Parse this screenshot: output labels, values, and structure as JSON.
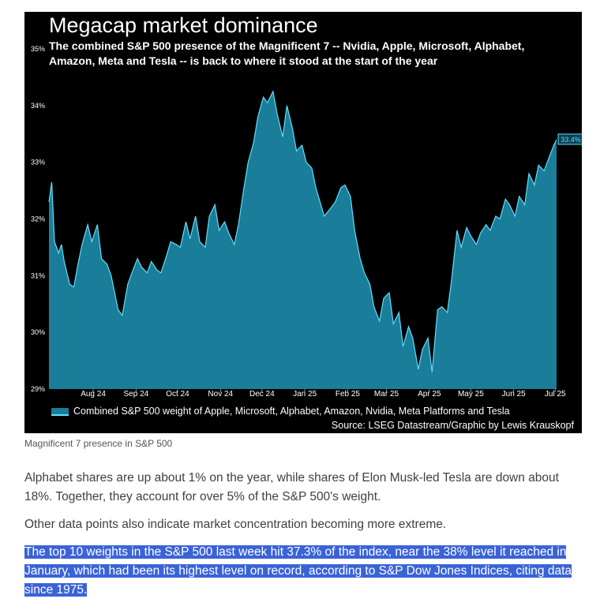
{
  "article": {
    "caption": "Magnificent 7 presence in S&P 500",
    "paragraphs": [
      "Alphabet shares are up about 1% on the year, while shares of Elon Musk-led Tesla are down about 18%. Together, they account for over 5% of the S&P 500's weight.",
      "Other data points also indicate market concentration becoming more extreme.",
      "The top 10 weights in the S&P 500 last week hit 37.3% of the index, near the 38% level it reached in January, which had been its highest level on record, according to S&P Dow Jones Indices, citing data since 1975."
    ],
    "highlight_color": "#3a63d8"
  },
  "chart_data": {
    "type": "area",
    "title": "Megacap market dominance",
    "subtitle": "The combined S&P 500 presence of the Magnificent 7 -- Nvidia, Apple, Microsoft, Alphabet, Amazon, Meta and Tesla -- is back to where it stood at the start of the year",
    "source": "Source: LSEG Datastream/Graphic by Lewis Krauskopf",
    "legend": {
      "position": "bottom-left",
      "entries": [
        "Combined S&P 500 weight of Apple, Microsoft, Alphabet, Amazon, Nvidia, Meta Platforms and Tesla"
      ]
    },
    "xlabel": "",
    "ylabel": "",
    "x_ticks": [
      "Aug 24",
      "Sep 24",
      "Oct 24",
      "Nov 24",
      "Dec 24",
      "Jan 25",
      "Feb 25",
      "Mar 25",
      "Apr 25",
      "May 25",
      "Jun 25",
      "Jul 25"
    ],
    "y_ticks": [
      "29%",
      "30%",
      "31%",
      "32%",
      "33%",
      "34%",
      "35%"
    ],
    "ylim": [
      29,
      35
    ],
    "grid": false,
    "last_value_label": "33.4%",
    "colors": {
      "fill": "#1a7d9a",
      "line": "#5fe0ff",
      "background": "#000000",
      "label_box": "#5fe0ff"
    },
    "series": [
      {
        "name": "Combined S&P 500 weight of Apple, Microsoft, Alphabet, Amazon, Nvidia, Meta Platforms and Tesla",
        "x": [
          "2024-07-15",
          "2024-07-17",
          "2024-07-19",
          "2024-07-22",
          "2024-07-24",
          "2024-07-26",
          "2024-07-30",
          "2024-08-02",
          "2024-08-05",
          "2024-08-08",
          "2024-08-12",
          "2024-08-15",
          "2024-08-19",
          "2024-08-22",
          "2024-08-26",
          "2024-08-29",
          "2024-09-03",
          "2024-09-06",
          "2024-09-10",
          "2024-09-13",
          "2024-09-17",
          "2024-09-20",
          "2024-09-24",
          "2024-09-27",
          "2024-10-01",
          "2024-10-04",
          "2024-10-08",
          "2024-10-11",
          "2024-10-15",
          "2024-10-18",
          "2024-10-22",
          "2024-10-25",
          "2024-10-29",
          "2024-11-01",
          "2024-11-05",
          "2024-11-08",
          "2024-11-12",
          "2024-11-15",
          "2024-11-19",
          "2024-11-22",
          "2024-11-26",
          "2024-11-29",
          "2024-12-03",
          "2024-12-06",
          "2024-12-10",
          "2024-12-13",
          "2024-12-17",
          "2024-12-20",
          "2024-12-24",
          "2024-12-27",
          "2024-12-31",
          "2025-01-03",
          "2025-01-07",
          "2025-01-10",
          "2025-01-14",
          "2025-01-17",
          "2025-01-21",
          "2025-01-24",
          "2025-01-27",
          "2025-01-30",
          "2025-02-04",
          "2025-02-07",
          "2025-02-11",
          "2025-02-14",
          "2025-02-18",
          "2025-02-21",
          "2025-02-25",
          "2025-02-28",
          "2025-03-04",
          "2025-03-07",
          "2025-03-11",
          "2025-03-14",
          "2025-03-18",
          "2025-03-21",
          "2025-03-25",
          "2025-03-28",
          "2025-04-01",
          "2025-04-04",
          "2025-04-08",
          "2025-04-11",
          "2025-04-15",
          "2025-04-18",
          "2025-04-22",
          "2025-04-25",
          "2025-04-29",
          "2025-05-02",
          "2025-05-06",
          "2025-05-09",
          "2025-05-13",
          "2025-05-16",
          "2025-05-20",
          "2025-05-23",
          "2025-05-27",
          "2025-05-30",
          "2025-06-03",
          "2025-06-06",
          "2025-06-10",
          "2025-06-13",
          "2025-06-17",
          "2025-06-20",
          "2025-06-24",
          "2025-06-27",
          "2025-07-01",
          "2025-07-04",
          "2025-07-08",
          "2025-07-11",
          "2025-07-15",
          "2025-07-17"
        ],
        "values": [
          32.3,
          32.65,
          31.6,
          31.4,
          31.55,
          31.25,
          30.85,
          30.8,
          31.2,
          31.55,
          31.9,
          31.6,
          31.9,
          31.3,
          31.2,
          31.0,
          30.4,
          30.3,
          30.85,
          31.05,
          31.3,
          31.15,
          31.05,
          31.25,
          31.1,
          31.05,
          31.35,
          31.6,
          31.55,
          31.5,
          31.95,
          31.65,
          32.05,
          31.6,
          31.5,
          32.05,
          32.25,
          31.8,
          31.95,
          31.75,
          31.55,
          31.9,
          32.55,
          33.0,
          33.35,
          33.8,
          34.15,
          34.05,
          34.25,
          33.85,
          33.45,
          34.0,
          33.6,
          33.2,
          33.3,
          33.0,
          32.9,
          32.55,
          32.3,
          32.05,
          32.2,
          32.3,
          32.55,
          32.6,
          32.4,
          31.8,
          31.3,
          31.05,
          30.85,
          30.45,
          30.2,
          30.6,
          30.7,
          30.15,
          30.35,
          29.75,
          30.1,
          29.9,
          29.35,
          29.7,
          29.9,
          29.3,
          30.4,
          30.45,
          30.35,
          30.9,
          31.8,
          31.5,
          31.85,
          31.7,
          31.55,
          31.75,
          31.9,
          31.8,
          32.05,
          32.0,
          32.35,
          32.25,
          32.05,
          32.4,
          32.25,
          32.8,
          32.6,
          32.95,
          32.85,
          33.05,
          33.3,
          33.4
        ]
      }
    ]
  }
}
